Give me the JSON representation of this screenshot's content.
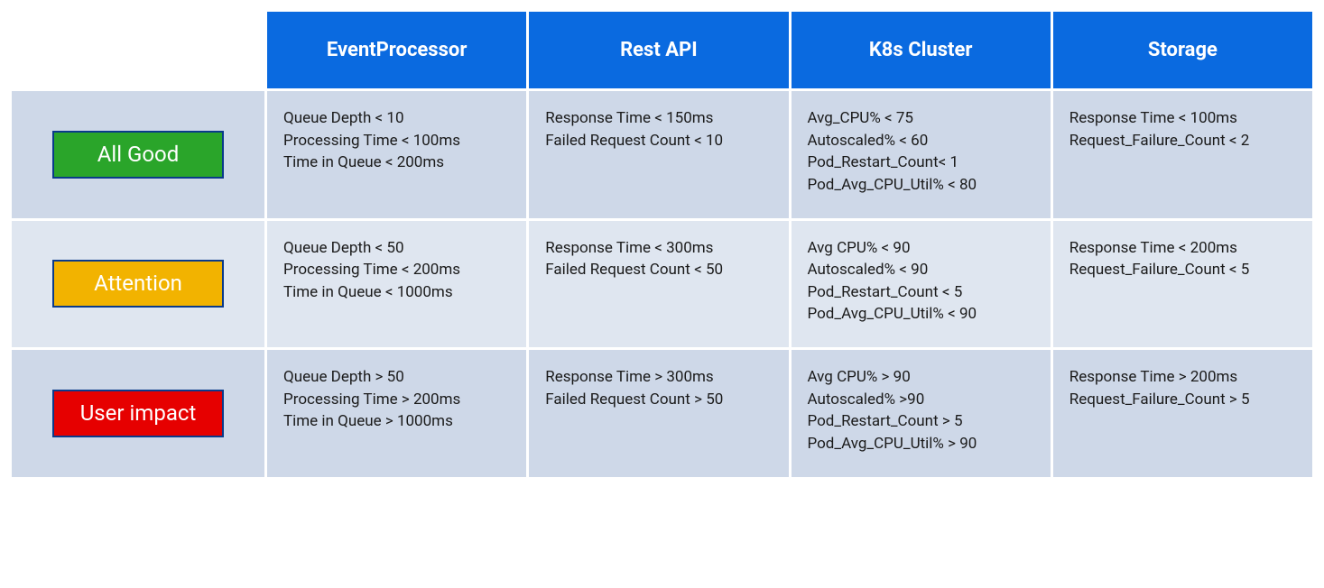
{
  "table": {
    "header_bg": "#0a6ae0",
    "header_text_color": "#ffffff",
    "row_even_bg": "#ced8e8",
    "row_odd_bg": "#dfe6f0",
    "cell_text_color": "#1a1a1a",
    "badge_border_color": "#0a3a8a",
    "columns": [
      "EventProcessor",
      "Rest API",
      "K8s Cluster",
      "Storage"
    ],
    "rows": [
      {
        "label": "All Good",
        "badge_bg": "#2aa52a",
        "cells": [
          [
            "Queue Depth < 10",
            "Processing Time < 100ms",
            "Time in Queue < 200ms"
          ],
          [
            "Response Time < 150ms",
            "Failed Request Count < 10"
          ],
          [
            "Avg_CPU% < 75",
            "Autoscaled% < 60",
            "Pod_Restart_Count< 1",
            "Pod_Avg_CPU_Util% < 80"
          ],
          [
            "Response Time < 100ms",
            "Request_Failure_Count < 2"
          ]
        ]
      },
      {
        "label": "Attention",
        "badge_bg": "#f2b300",
        "cells": [
          [
            "Queue Depth < 50",
            "Processing Time < 200ms",
            "Time in Queue < 1000ms"
          ],
          [
            "Response Time < 300ms",
            "Failed Request Count < 50"
          ],
          [
            "Avg CPU% < 90",
            "Autoscaled% < 90",
            "Pod_Restart_Count < 5",
            "Pod_Avg_CPU_Util% < 90"
          ],
          [
            "Response Time < 200ms",
            "Request_Failure_Count < 5"
          ]
        ]
      },
      {
        "label": "User impact",
        "badge_bg": "#e60000",
        "cells": [
          [
            "Queue Depth > 50",
            "Processing Time > 200ms",
            "Time in Queue > 1000ms"
          ],
          [
            "Response Time > 300ms",
            "Failed Request Count > 50"
          ],
          [
            "Avg CPU% > 90",
            "Autoscaled% >90",
            "Pod_Restart_Count > 5",
            "Pod_Avg_CPU_Util% > 90"
          ],
          [
            "Response Time > 200ms",
            "Request_Failure_Count > 5"
          ]
        ]
      }
    ]
  }
}
